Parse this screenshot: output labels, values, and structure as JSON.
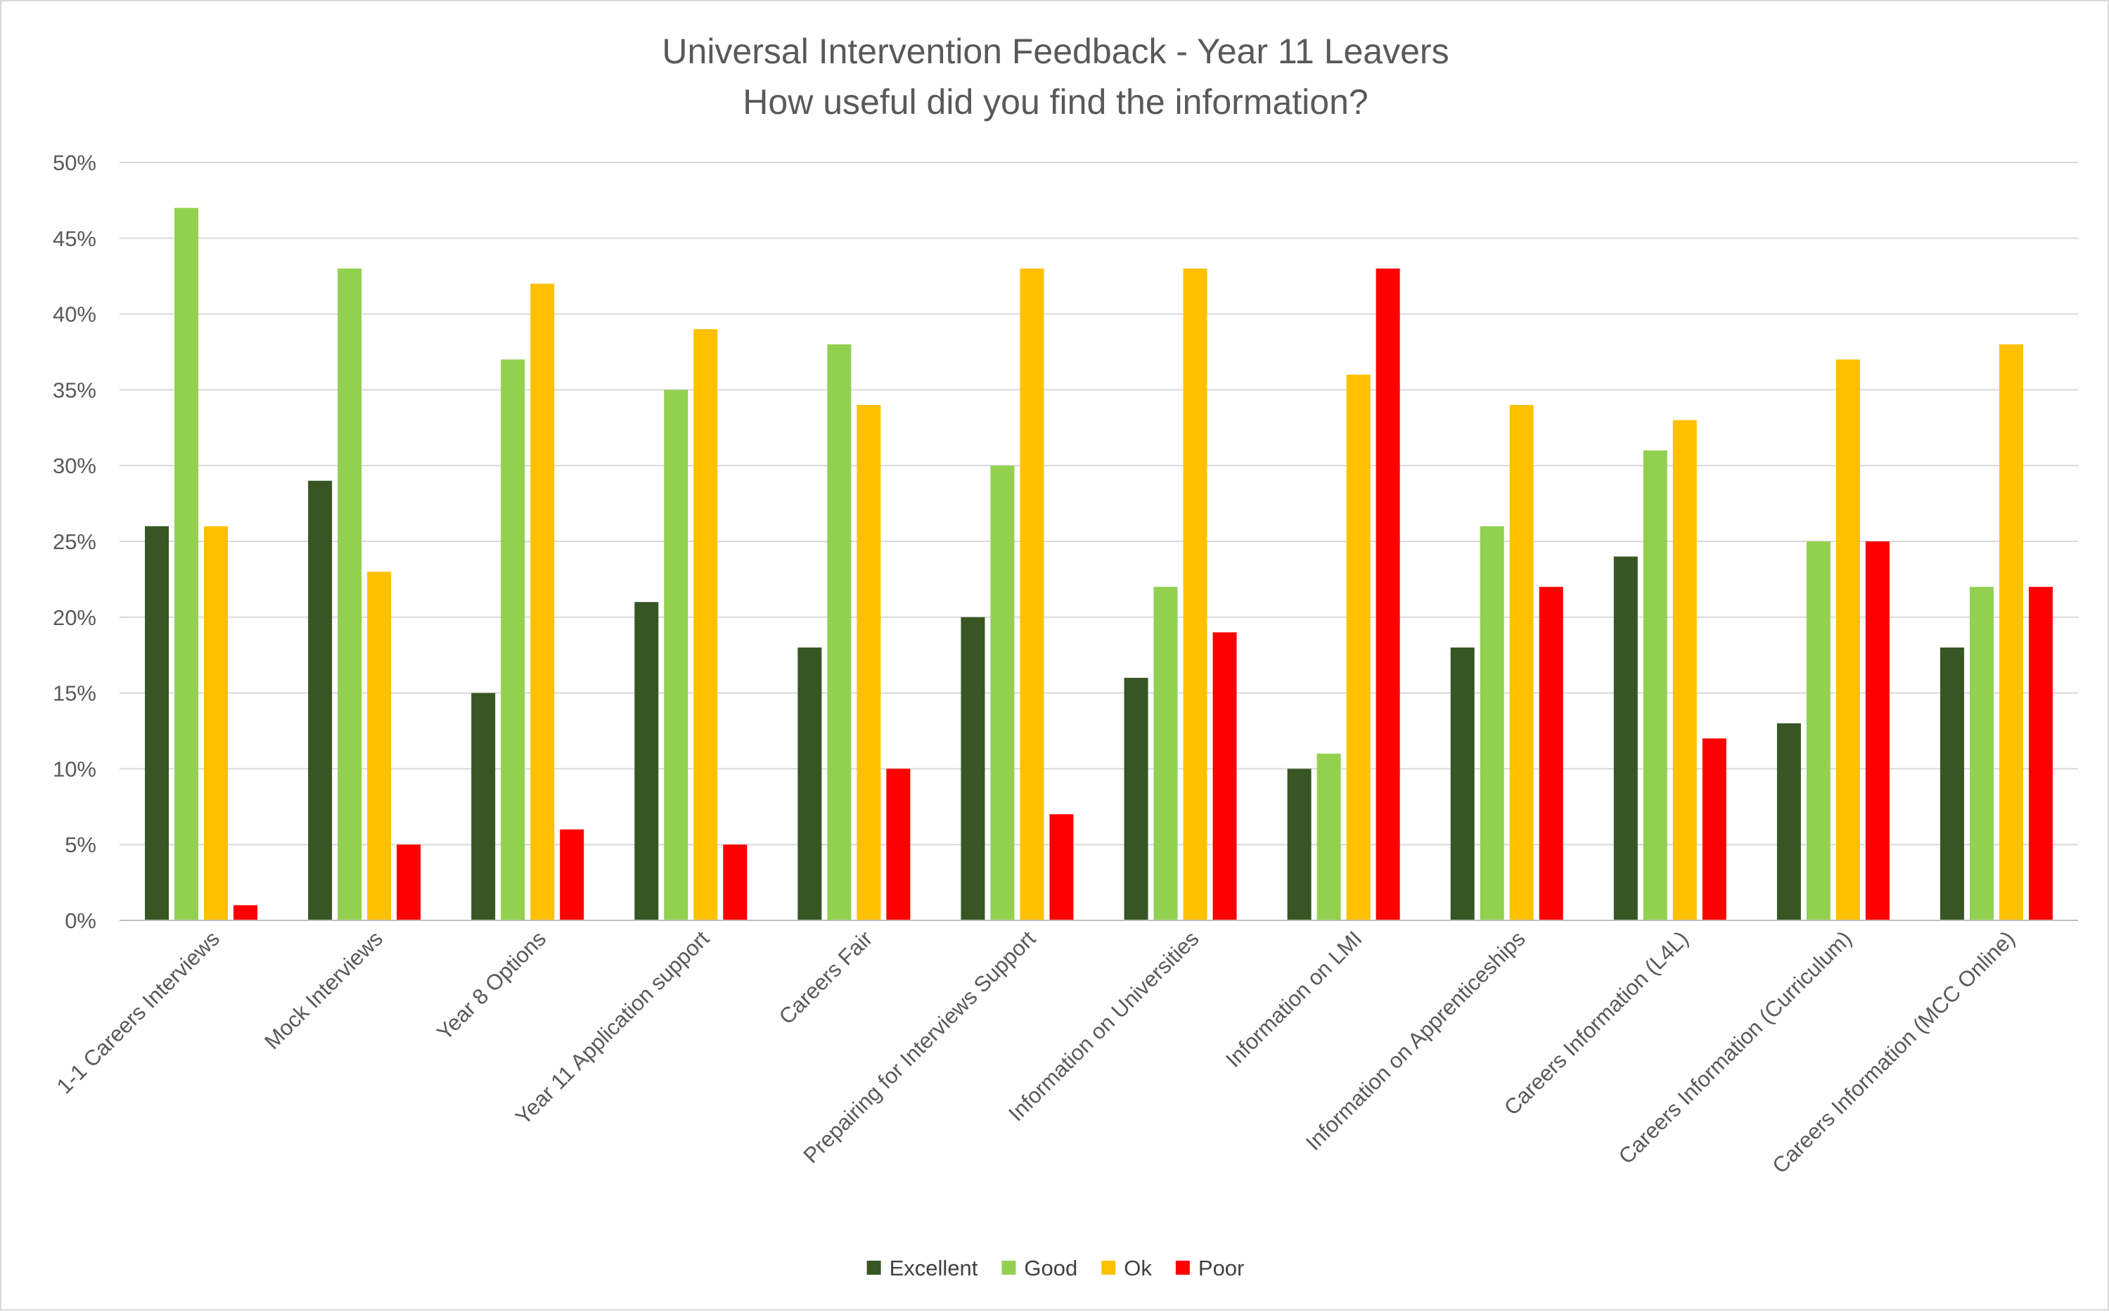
{
  "chart_data": {
    "type": "bar",
    "title": "Universal Intervention Feedback - Year 11 Leavers",
    "subtitle": "How useful did you find the information?",
    "xlabel": "",
    "ylabel": "",
    "ylim": [
      0,
      50
    ],
    "yticks": [
      "0%",
      "5%",
      "10%",
      "15%",
      "20%",
      "25%",
      "30%",
      "35%",
      "40%",
      "45%",
      "50%"
    ],
    "grid": true,
    "legend_position": "bottom",
    "categories": [
      "1-1 Careers Interviews",
      "Mock Interviews",
      "Year 8 Options",
      "Year 11 Application support",
      "Careers Fair",
      "Prepairing for Interviews Support",
      "Information on Universities",
      "Information on LMI",
      "Information on Apprenticeships",
      "Careers Information (L4L)",
      "Careers Information (Curriculum)",
      "Careers Information (MCC Online)"
    ],
    "series": [
      {
        "name": "Excellent",
        "color": "#375623",
        "values": [
          26,
          29,
          15,
          21,
          18,
          20,
          16,
          10,
          18,
          24,
          13,
          18
        ]
      },
      {
        "name": "Good",
        "color": "#92d050",
        "values": [
          47,
          43,
          37,
          35,
          38,
          30,
          22,
          11,
          26,
          31,
          25,
          22
        ]
      },
      {
        "name": "Ok",
        "color": "#ffc000",
        "values": [
          26,
          23,
          42,
          39,
          34,
          43,
          43,
          36,
          34,
          33,
          37,
          38
        ]
      },
      {
        "name": "Poor",
        "color": "#ff0000",
        "values": [
          1,
          5,
          6,
          5,
          10,
          7,
          19,
          43,
          22,
          12,
          25,
          22
        ]
      }
    ]
  }
}
